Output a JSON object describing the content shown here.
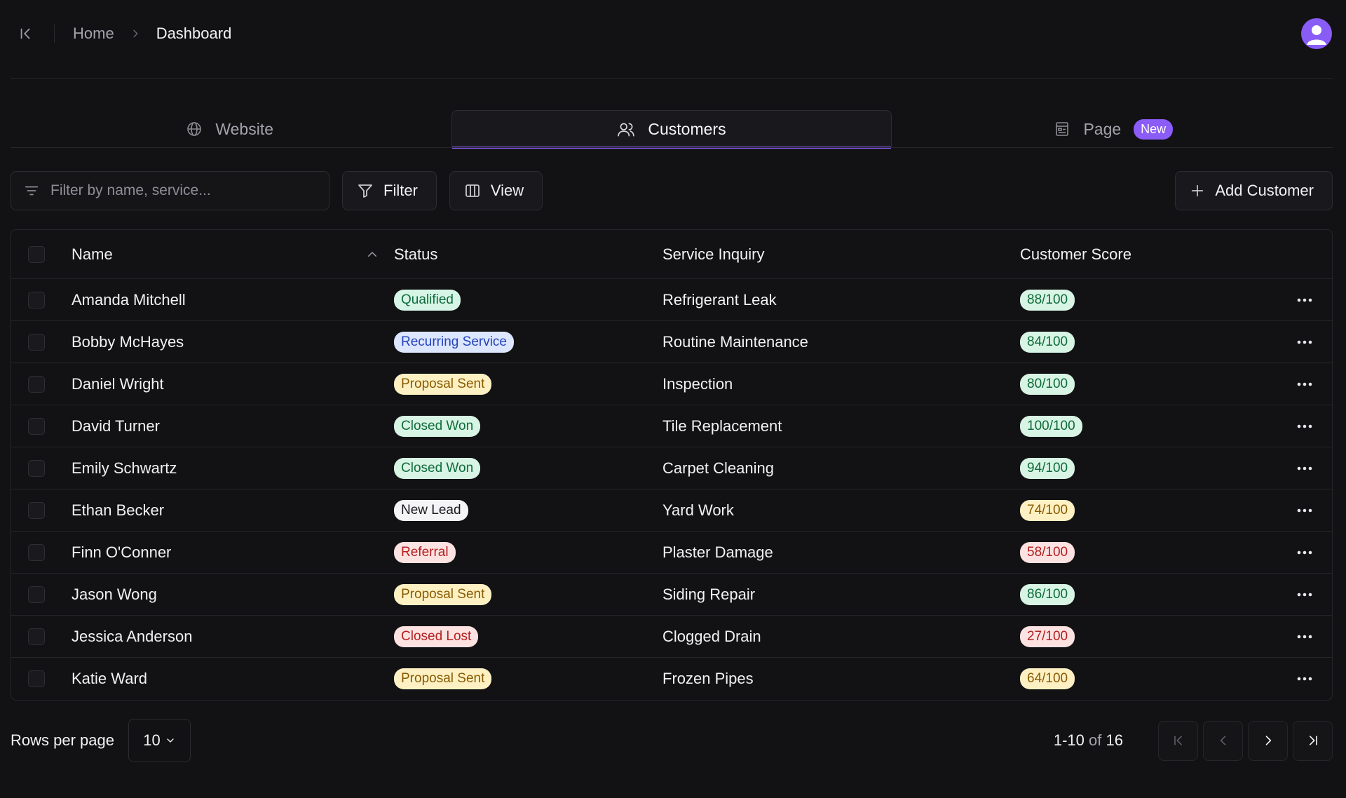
{
  "breadcrumb": {
    "home": "Home",
    "current": "Dashboard"
  },
  "tabs": [
    {
      "label": "Website",
      "icon": "globe-icon"
    },
    {
      "label": "Customers",
      "icon": "users-icon",
      "active": true
    },
    {
      "label": "Page",
      "icon": "page-icon",
      "badge": "New"
    }
  ],
  "toolbar": {
    "search_placeholder": "Filter by name, service...",
    "filter_label": "Filter",
    "view_label": "View",
    "add_label": "Add Customer"
  },
  "table": {
    "headers": {
      "name": "Name",
      "status": "Status",
      "service": "Service Inquiry",
      "score": "Customer Score"
    },
    "rows": [
      {
        "name": "Amanda Mitchell",
        "status": "Qualified",
        "service": "Refrigerant Leak",
        "score": "88/100"
      },
      {
        "name": "Bobby McHayes",
        "status": "Recurring Service",
        "service": "Routine Maintenance",
        "score": "84/100"
      },
      {
        "name": "Daniel Wright",
        "status": "Proposal Sent",
        "service": "Inspection",
        "score": "80/100"
      },
      {
        "name": "David Turner",
        "status": "Closed Won",
        "service": "Tile Replacement",
        "score": "100/100"
      },
      {
        "name": "Emily Schwartz",
        "status": "Closed Won",
        "service": "Carpet Cleaning",
        "score": "94/100"
      },
      {
        "name": "Ethan Becker",
        "status": "New Lead",
        "service": "Yard Work",
        "score": "74/100"
      },
      {
        "name": "Finn O'Conner",
        "status": "Referral",
        "service": "Plaster Damage",
        "score": "58/100"
      },
      {
        "name": "Jason Wong",
        "status": "Proposal Sent",
        "service": "Siding Repair",
        "score": "86/100"
      },
      {
        "name": "Jessica Anderson",
        "status": "Closed Lost",
        "service": "Clogged Drain",
        "score": "27/100"
      },
      {
        "name": "Katie Ward",
        "status": "Proposal Sent",
        "service": "Frozen Pipes",
        "score": "64/100"
      }
    ]
  },
  "footer": {
    "rows_per_page_label": "Rows per page",
    "rows_per_page_value": "10",
    "range": "1-10",
    "of": "of",
    "total": "16"
  },
  "colors": {
    "accent": "#8b5cf6",
    "background": "#121214"
  }
}
